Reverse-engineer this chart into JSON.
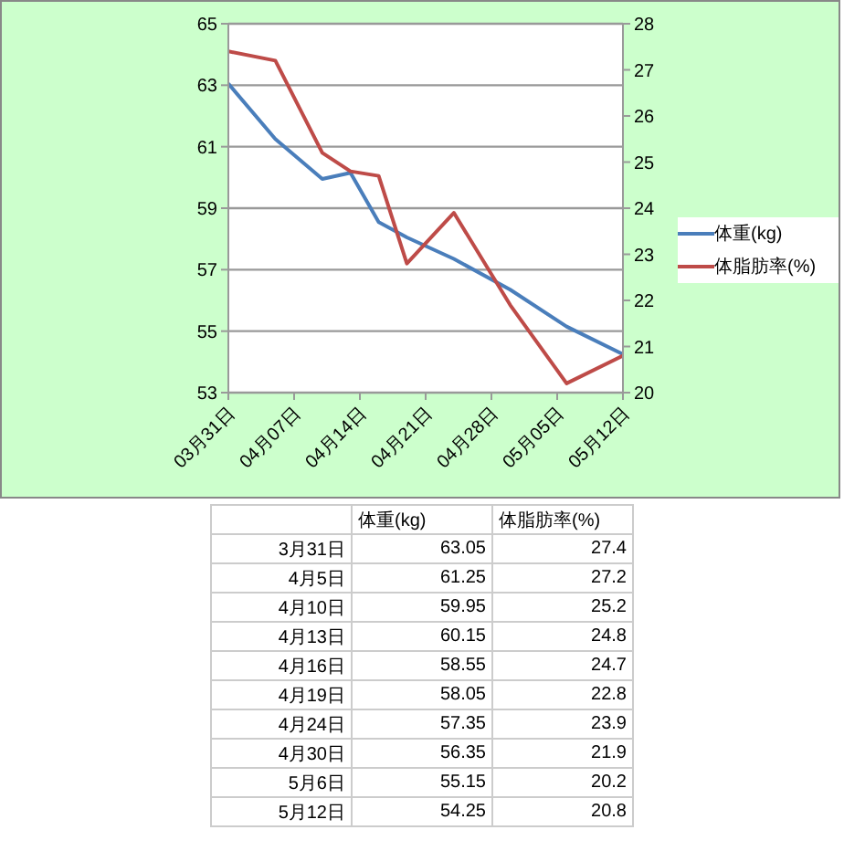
{
  "chart_data": [
    {
      "type": "line",
      "x": [
        "--03-31",
        "--04-05",
        "--04-10",
        "--04-13",
        "--04-16",
        "--04-19",
        "--04-24",
        "--04-30",
        "--05-06",
        "--05-12"
      ],
      "xlim": [
        "--03-31",
        "--05-12"
      ],
      "xticks": [
        {
          "value": "--03-31",
          "label": "03月31日"
        },
        {
          "value": "--04-07",
          "label": "04月07日"
        },
        {
          "value": "--04-14",
          "label": "04月14日"
        },
        {
          "value": "--04-21",
          "label": "04月21日"
        },
        {
          "value": "--04-28",
          "label": "04月28日"
        },
        {
          "value": "--05-05",
          "label": "05月05日"
        },
        {
          "value": "--05-12",
          "label": "05月12日"
        }
      ],
      "ylim": [
        53,
        65
      ],
      "yticks": [
        53,
        55,
        57,
        59,
        61,
        63,
        65
      ],
      "y2lim": [
        20,
        28
      ],
      "y2ticks": [
        20,
        21,
        22,
        23,
        24,
        25,
        26,
        27,
        28
      ],
      "grid": "y",
      "legend": "right",
      "marker": "none",
      "series": [
        {
          "name": "体重(kg)",
          "color": "#4a7ebb",
          "values": [
            63.05,
            61.25,
            59.95,
            60.15,
            58.55,
            58.05,
            57.35,
            56.35,
            55.15,
            54.25
          ]
        },
        {
          "name": "体脂肪率(%)",
          "color": "#be4b48",
          "axis": "y2",
          "values": [
            27.4,
            27.2,
            25.2,
            24.8,
            24.7,
            22.8,
            23.9,
            21.9,
            20.2,
            20.8
          ]
        }
      ]
    },
    {
      "type": "other",
      "annotations": [
        "体重(kg)",
        "体脂肪率(%)",
        "3月31日",
        "63.05",
        "27.4",
        "4月5日",
        "61.25",
        "27.2",
        "4月10日",
        "59.95",
        "25.2",
        "4月13日",
        "60.15",
        "24.8",
        "4月16日",
        "58.55",
        "24.7",
        "4月19日",
        "58.05",
        "22.8",
        "4月24日",
        "57.35",
        "23.9",
        "4月30日",
        "56.35",
        "21.9",
        "5月6日",
        "55.15",
        "20.2",
        "5月12日",
        "54.25",
        "20.8"
      ]
    }
  ]
}
